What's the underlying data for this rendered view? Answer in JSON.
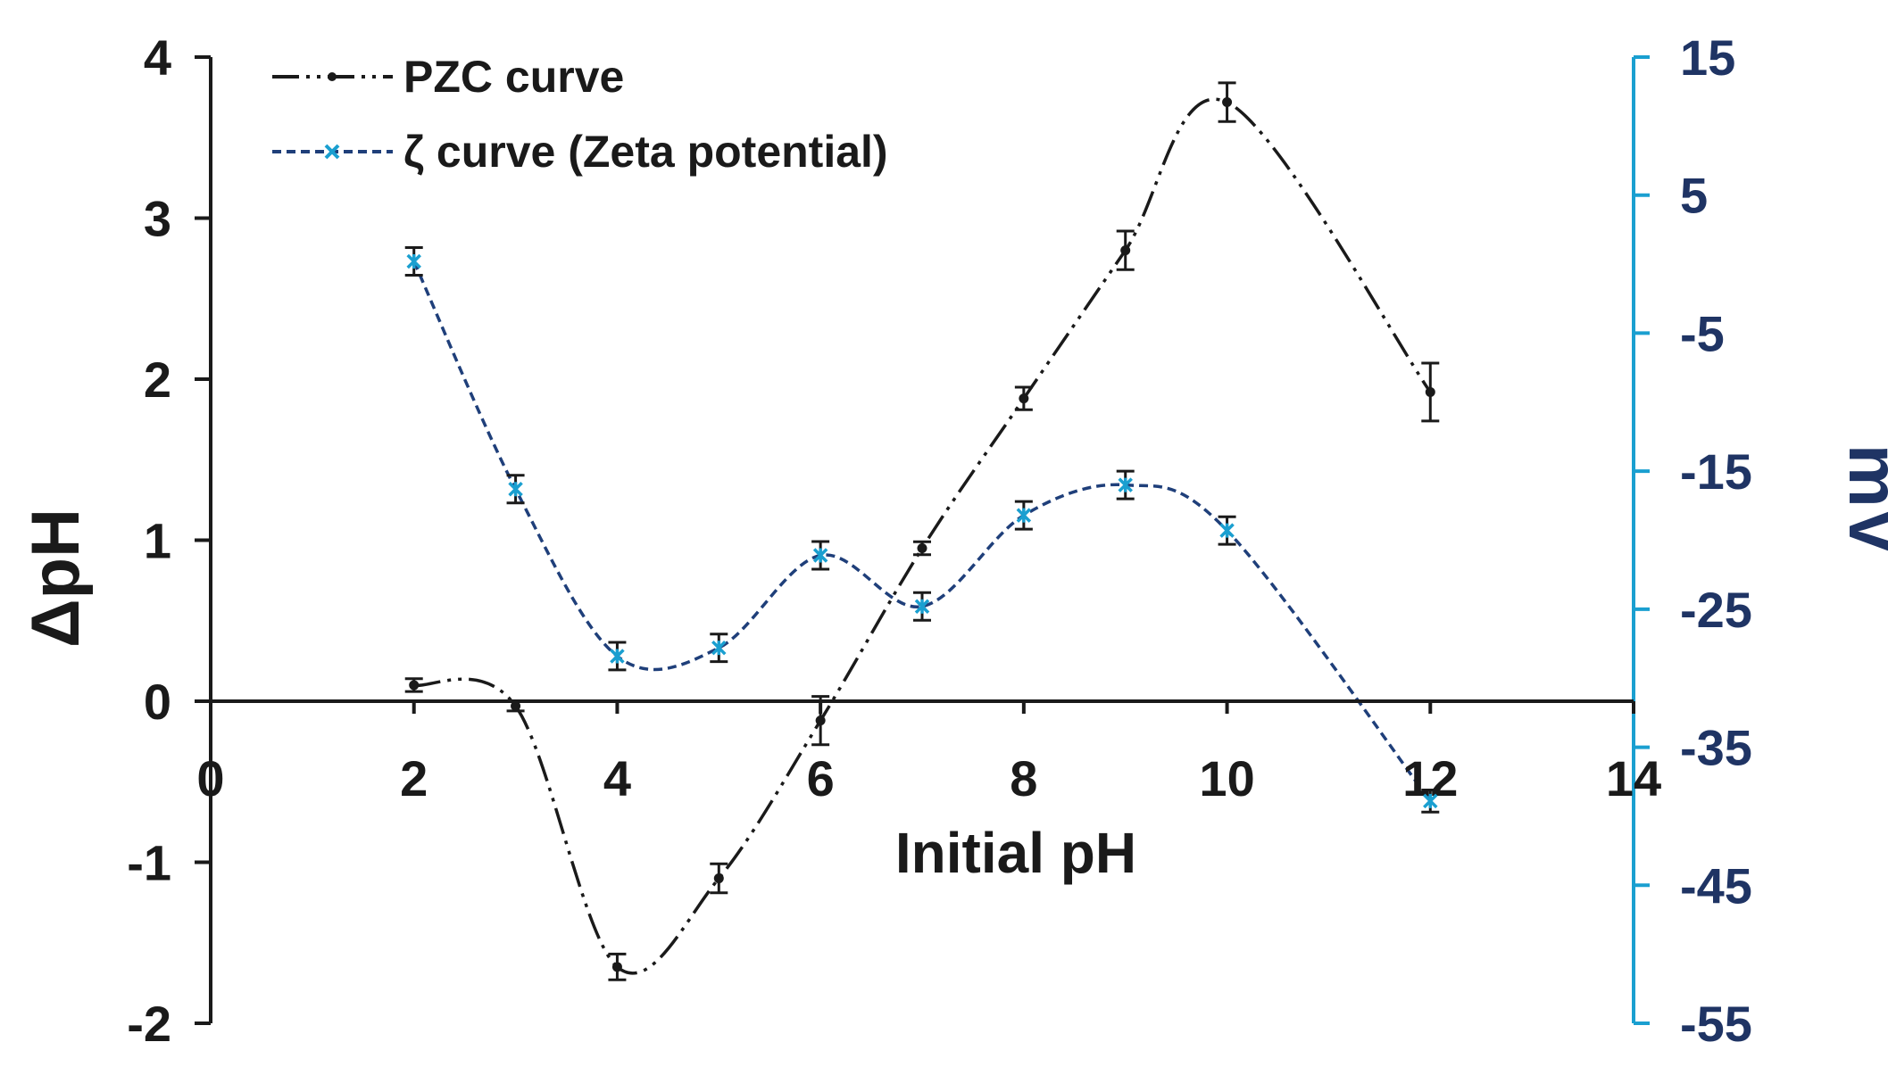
{
  "chart_data": {
    "type": "line",
    "x_axis": {
      "label": "Initial pH",
      "range": [
        0,
        14
      ],
      "ticks": [
        0,
        2,
        4,
        6,
        8,
        10,
        12,
        14
      ],
      "tick_labels": [
        "0",
        "2",
        "4",
        "6",
        "8",
        "10",
        "12",
        "14"
      ]
    },
    "y_axis_left": {
      "label": "ΔpH",
      "range": [
        -2,
        4
      ],
      "ticks": [
        -2,
        -1,
        0,
        1,
        2,
        3,
        4
      ],
      "tick_labels": [
        "-2",
        "-1",
        "0",
        "1",
        "2",
        "3",
        "4"
      ],
      "color": "#1a1a1a"
    },
    "y_axis_right": {
      "label": "mV",
      "range": [
        -55,
        15
      ],
      "ticks": [
        -55,
        -45,
        -35,
        -25,
        -15,
        -5,
        5,
        15
      ],
      "tick_labels": [
        "-55",
        "-45",
        "-35",
        "-25",
        "-15",
        "-5",
        "5",
        "15"
      ],
      "color": "#1f3464",
      "line_color": "#1a9fd0"
    },
    "grid": false,
    "legend_position": "top-left",
    "series": [
      {
        "name": "PZC curve",
        "axis": "left",
        "x": [
          2,
          3,
          4,
          5,
          6,
          7,
          8,
          9,
          10,
          12
        ],
        "y": [
          0.1,
          -0.03,
          -1.65,
          -1.1,
          -0.12,
          0.95,
          1.88,
          2.8,
          3.72,
          1.92
        ],
        "error": [
          0.04,
          0.03,
          0.08,
          0.09,
          0.15,
          0.04,
          0.07,
          0.12,
          0.12,
          0.18
        ],
        "color": "#1a1a1a",
        "line_style": "dash-dot-dot"
      },
      {
        "name": "ζ curve (Zeta potential)",
        "axis": "right",
        "x": [
          2,
          3,
          4,
          5,
          6,
          7,
          8,
          9,
          10,
          12
        ],
        "y": [
          0.2,
          -16.3,
          -28.4,
          -27.8,
          -21.1,
          -24.8,
          -18.2,
          -16.0,
          -19.3,
          -38.9
        ],
        "error": [
          1.0,
          1.0,
          1.0,
          1.0,
          1.0,
          1.0,
          1.0,
          1.0,
          1.0,
          0.8
        ],
        "color": "#1f3f7a",
        "marker_color": "#1a9fd0",
        "line_style": "dashed"
      }
    ]
  }
}
